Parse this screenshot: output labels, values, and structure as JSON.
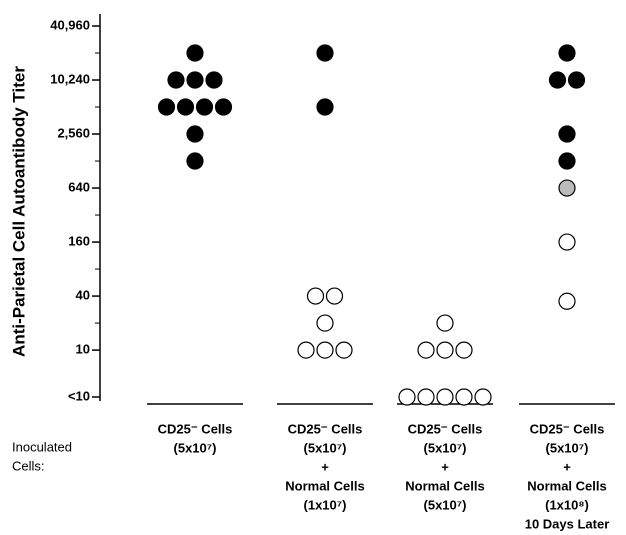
{
  "chart_data": {
    "type": "dot",
    "y_label": "Anti-Parietal Cell Autoantibody Titer",
    "row_label": [
      "Inoculated",
      "Cells:"
    ],
    "categories": [
      [
        "CD25⁻ Cells",
        "(5x10⁷)"
      ],
      [
        "CD25⁻ Cells",
        "(5x10⁷)",
        "+",
        "Normal Cells",
        "(1x10⁷)"
      ],
      [
        "CD25⁻ Cells",
        "(5x10⁷)",
        "+",
        "Normal Cells",
        "(5x10⁷)"
      ],
      [
        "CD25⁻ Cells",
        "(5x10⁷)",
        "+",
        "Normal Cells",
        "(1x10⁸)",
        "10 Days Later"
      ]
    ],
    "values": [
      [
        20480,
        10240,
        10240,
        10240,
        5120,
        5120,
        5120,
        5120,
        2560,
        1280
      ],
      [
        20480,
        5120,
        40,
        40,
        20,
        10,
        10,
        10
      ],
      [
        20,
        10,
        10,
        10,
        3,
        3,
        3,
        3,
        3
      ],
      [
        20480,
        10240,
        10240,
        2560,
        1280,
        640,
        160,
        35
      ]
    ],
    "marker_colors": [
      [
        "#000",
        "#000",
        "#000",
        "#000",
        "#000",
        "#000",
        "#000",
        "#000",
        "#000",
        "#000"
      ],
      [
        "#000",
        "#000",
        "#fff",
        "#fff",
        "#fff",
        "#fff",
        "#fff",
        "#fff"
      ],
      [
        "#fff",
        "#fff",
        "#fff",
        "#fff",
        "#fff",
        "#fff",
        "#fff",
        "#fff",
        "#fff"
      ],
      [
        "#000",
        "#000",
        "#000",
        "#000",
        "#000",
        "#bbb",
        "#fff",
        "#fff"
      ]
    ],
    "log_scale": true,
    "ylim": [
      3,
      40960
    ],
    "yticks": [
      {
        "value": 3,
        "label": "<10"
      },
      10,
      40,
      160,
      640,
      {
        "value": 2560,
        "label": "2,560"
      },
      {
        "value": 10240,
        "label": "10,240"
      },
      {
        "value": 40960,
        "label": "40,960"
      }
    ],
    "minor_yticks": [
      20,
      80,
      320,
      1280,
      5120,
      20480
    ]
  }
}
